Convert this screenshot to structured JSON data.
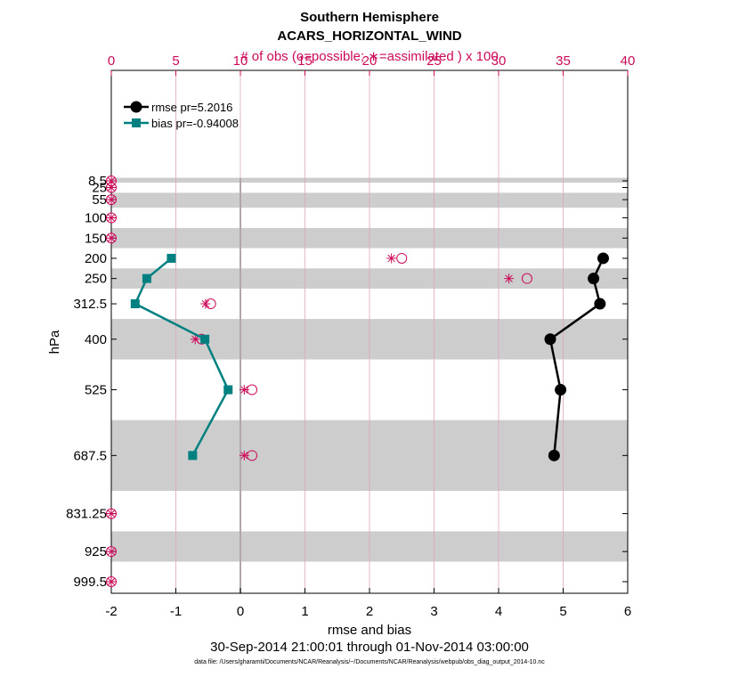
{
  "chart_data": {
    "type": "line",
    "title": "Southern Hemisphere",
    "subtitle": "ACARS_HORIZONTAL_WIND",
    "top_axis_label": "# of obs (o=possible; ∗=assimilated ) x 100",
    "xlabel": "rmse and bias",
    "ylabel": "hPa",
    "date_range": "30-Sep-2014 21:00:01 through 01-Nov-2014 03:00:00",
    "footnote": "data file: /Users/gharamti/Documents/NCAR/Reanalysis/~/Documents/NCAR/Reanalysis/webpub/obs_diag_output_2014-10.nc",
    "xlim": [
      -2,
      6
    ],
    "x_ticks": [
      "-2",
      "-1",
      "0",
      "1",
      "2",
      "3",
      "4",
      "5",
      "6"
    ],
    "top_xlim": [
      0,
      40
    ],
    "top_ticks": [
      "0",
      "5",
      "10",
      "15",
      "20",
      "25",
      "30",
      "35",
      "40"
    ],
    "y_levels": [
      8.5,
      25,
      55,
      100,
      150,
      200,
      250,
      312.5,
      400,
      525,
      687.5,
      831.25,
      925,
      999.5
    ],
    "y_tick_labels": [
      "8.5",
      "25",
      "55",
      "100",
      "150",
      "200",
      "250",
      "312.5",
      "400",
      "525",
      "687.5",
      "831.25",
      "925",
      "999.5"
    ],
    "y_reversed": true,
    "grid": "vertical",
    "legend_position": "top-left",
    "bands": [
      [
        1,
        13
      ],
      [
        38,
        75
      ],
      [
        125,
        175
      ],
      [
        225,
        275
      ],
      [
        350,
        450
      ],
      [
        600,
        775
      ],
      [
        875,
        950
      ]
    ],
    "series": [
      {
        "name": "rmse pr=5.2016",
        "color": "#000000",
        "marker": "circle",
        "x": [
          5.62,
          5.47,
          5.57,
          4.8,
          4.96,
          4.86
        ],
        "y": [
          200,
          250,
          312.5,
          400,
          525,
          687.5
        ]
      },
      {
        "name": "bias pr=-0.94008",
        "color": "#008080",
        "marker": "square",
        "x": [
          -1.07,
          -1.45,
          -1.63,
          -0.55,
          -0.19,
          -0.74
        ],
        "y": [
          200,
          250,
          312.5,
          400,
          525,
          687.5
        ]
      }
    ],
    "obs_possible": {
      "color": "#cc0a5a",
      "marker": "open-circle",
      "x": [
        0,
        0,
        0,
        0,
        0,
        22.5,
        32.2,
        7.7,
        7.0,
        10.9,
        10.9,
        0,
        0,
        0
      ],
      "y": [
        8.5,
        25,
        55,
        100,
        150,
        200,
        250,
        312.5,
        400,
        525,
        687.5,
        831.25,
        925,
        999.5
      ]
    },
    "obs_assimilated": {
      "color": "#cc0a5a",
      "marker": "asterisk",
      "x": [
        0,
        0,
        0,
        0,
        0,
        21.7,
        30.8,
        7.3,
        6.5,
        10.3,
        10.3,
        0,
        0,
        0
      ],
      "y": [
        8.5,
        25,
        55,
        100,
        150,
        200,
        250,
        312.5,
        400,
        525,
        687.5,
        831.25,
        925,
        999.5
      ]
    }
  }
}
